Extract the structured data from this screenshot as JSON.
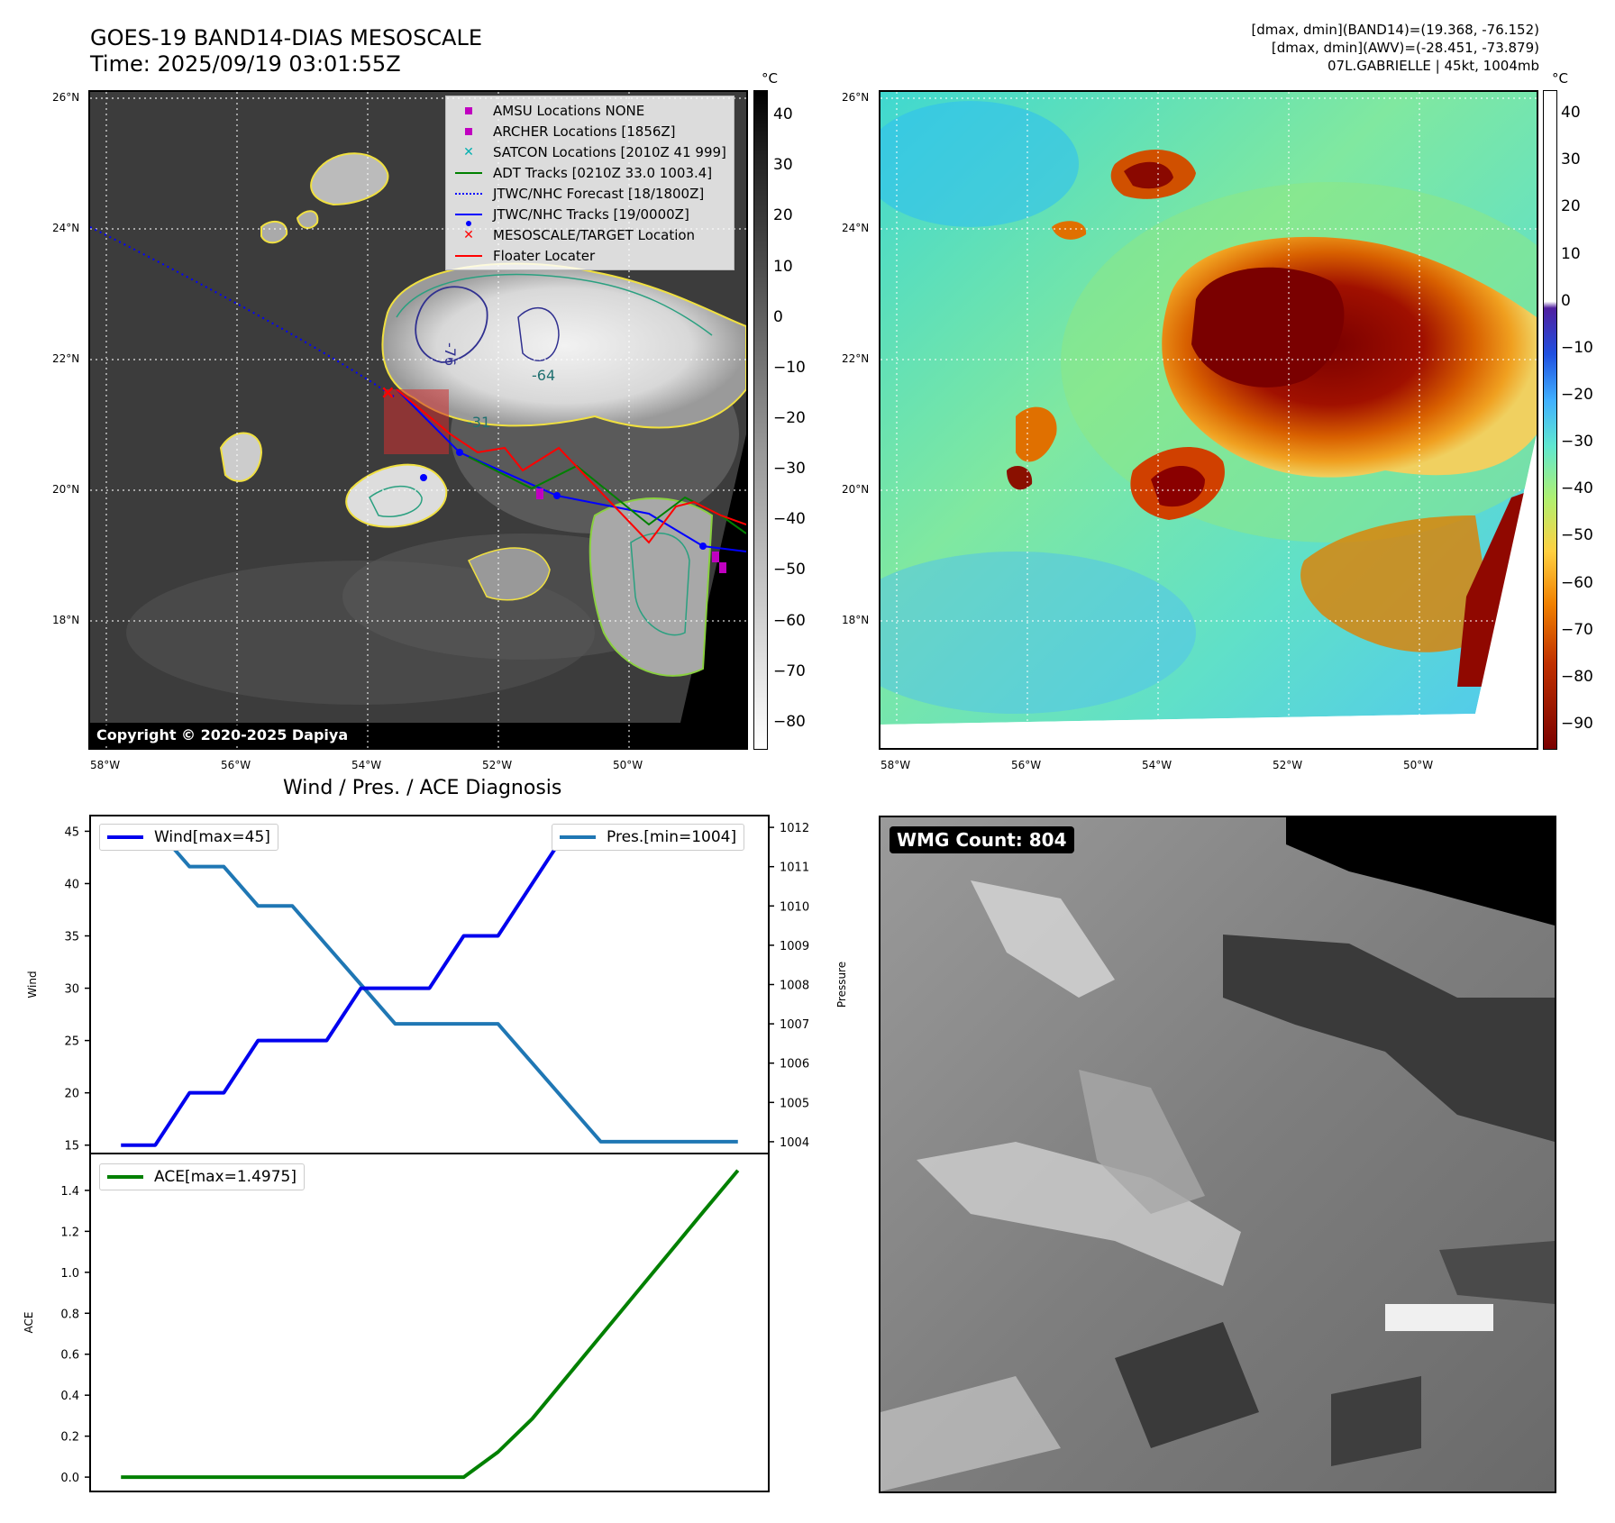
{
  "header": {
    "title_line1": "GOES-19 BAND14-DIAS MESOSCALE",
    "title_line2": "Time: 2025/09/19 03:01:55Z",
    "info_line1": "[dmax, dmin](BAND14)=(19.368, -76.152)",
    "info_line2": "[dmax, dmin](AWV)=(-28.451, -73.879)",
    "info_line3": "07L.GABRIELLE | 45kt, 1004mb"
  },
  "ir_panel": {
    "lat_labels": [
      "26°N",
      "24°N",
      "22°N",
      "20°N",
      "18°N"
    ],
    "lon_labels": [
      "58°W",
      "56°W",
      "54°W",
      "52°W",
      "50°W"
    ],
    "contour_labels": [
      "-76",
      "-64",
      "-31",
      "-64"
    ],
    "copyright": "Copyright © 2020-2025 Dapiya",
    "legend": [
      {
        "label": "AMSU Locations NONE",
        "color": "#c000c0",
        "marker": "square"
      },
      {
        "label": "ARCHER Locations [1856Z]",
        "color": "#c000c0",
        "marker": "square"
      },
      {
        "label": "SATCON Locations [2010Z 41 999]",
        "color": "#00b0b0",
        "marker": "x"
      },
      {
        "label": "ADT Tracks [0210Z 33.0 1003.4]",
        "color": "#008000",
        "marker": "line"
      },
      {
        "label": "JTWC/NHC Forecast [18/1800Z]",
        "color": "#0000ff",
        "marker": "dotted"
      },
      {
        "label": "JTWC/NHC Tracks [19/0000Z]",
        "color": "#0000ff",
        "marker": "dotline"
      },
      {
        "label": "MESOSCALE/TARGET Location",
        "color": "#ff0000",
        "marker": "x"
      },
      {
        "label": "Floater Locater",
        "color": "#ff0000",
        "marker": "line"
      }
    ],
    "colorbar": {
      "unit": "°C",
      "ticks": [
        "40",
        "30",
        "20",
        "10",
        "0",
        "−10",
        "−20",
        "−30",
        "−40",
        "−50",
        "−60",
        "−70",
        "−80"
      ]
    }
  },
  "wv_panel": {
    "lat_labels": [
      "26°N",
      "24°N",
      "22°N",
      "20°N",
      "18°N"
    ],
    "lon_labels": [
      "58°W",
      "56°W",
      "54°W",
      "52°W",
      "50°W"
    ],
    "colorbar": {
      "unit": "°C",
      "ticks": [
        "40",
        "30",
        "20",
        "10",
        "0",
        "−10",
        "−20",
        "−30",
        "−40",
        "−50",
        "−60",
        "−70",
        "−80",
        "−90"
      ],
      "colors": [
        "#7a0000",
        "#c03000",
        "#f08000",
        "#ffd040",
        "#b0f070",
        "#60e8d0",
        "#40b0ff",
        "#2050e0",
        "#5020a0"
      ]
    }
  },
  "diag_title": "Wind / Pres. / ACE Diagnosis",
  "wmg": {
    "badge": "WMG Count: 804"
  },
  "chart_data": [
    {
      "type": "line",
      "title": "Wind / Pres. / ACE Diagnosis",
      "ylabel": "Wind",
      "ylabel_right": "Pressure",
      "x": [
        0,
        1,
        2,
        3,
        4,
        5,
        6,
        7,
        8,
        9,
        10,
        11,
        12,
        13,
        14,
        15,
        16,
        17,
        18
      ],
      "ylim": [
        14.2,
        46.5
      ],
      "ylim_right": [
        1003.7,
        1012.3
      ],
      "yticks": [
        15,
        20,
        25,
        30,
        35,
        40,
        45
      ],
      "yticks_right": [
        1004,
        1005,
        1006,
        1007,
        1008,
        1009,
        1010,
        1011,
        1012
      ],
      "series": [
        {
          "name": "Wind[max=45]",
          "color": "#0000ee",
          "axis": "left",
          "values": [
            15,
            15,
            20,
            20,
            25,
            25,
            25,
            30,
            30,
            30,
            35,
            35,
            40,
            45,
            45,
            45,
            45,
            45,
            45
          ]
        },
        {
          "name": "Pres.[min=1004]",
          "color": "#1f77b4",
          "axis": "right",
          "values": [
            1012,
            1012,
            1011,
            1011,
            1010,
            1010,
            1009,
            1008,
            1007,
            1007,
            1007,
            1007,
            1006,
            1005,
            1004,
            1004,
            1004,
            1004,
            1004
          ]
        }
      ]
    },
    {
      "type": "line",
      "ylabel": "ACE",
      "x": [
        0,
        1,
        2,
        3,
        4,
        5,
        6,
        7,
        8,
        9,
        10,
        11,
        12,
        13,
        14,
        15,
        16,
        17,
        18
      ],
      "ylim": [
        -0.07,
        1.58
      ],
      "yticks": [
        0.0,
        0.2,
        0.4,
        0.6,
        0.8,
        1.0,
        1.2,
        1.4
      ],
      "series": [
        {
          "name": "ACE[max=1.4975]",
          "color": "#008000",
          "values": [
            0,
            0,
            0,
            0,
            0,
            0,
            0,
            0,
            0,
            0,
            0,
            0.1225,
            0.285,
            0.4875,
            0.69,
            0.8925,
            1.095,
            1.2975,
            1.4975
          ]
        }
      ]
    }
  ]
}
